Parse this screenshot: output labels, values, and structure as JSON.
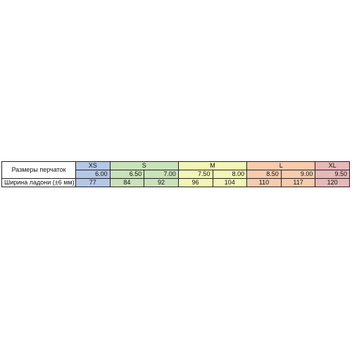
{
  "table": {
    "header_label": "Размеры перчаток",
    "row_label": "Ширина ладони (±6 мм)",
    "groups": [
      "XS",
      "S",
      "M",
      "L",
      "XL"
    ],
    "sizes": [
      "6.00",
      "6.50",
      "7.00",
      "7.50",
      "8.00",
      "8.50",
      "9.00",
      "9.50"
    ],
    "widths": [
      77,
      84,
      92,
      96,
      104,
      110,
      117,
      120
    ]
  }
}
